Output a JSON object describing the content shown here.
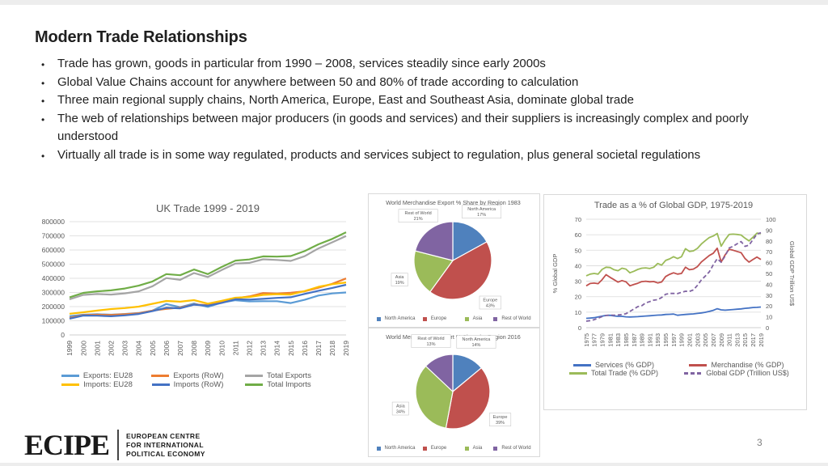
{
  "slide": {
    "title": "Modern Trade Relationships",
    "bullets": [
      "Trade has grown, goods in particular from 1990 – 2008, services steadily since early 2000s",
      "Global Value Chains account for anywhere between 50 and 80% of trade according to calculation",
      "Three main regional supply chains, North America, Europe, East and Southeast Asia, dominate global trade",
      "The web of relationships between major producers (in goods and services) and their suppliers is increasingly complex and poorly understood",
      "Virtually all trade is in some way regulated, products and services subject to regulation, plus general societal regulations"
    ],
    "page_number": "3",
    "logo": {
      "text": "ECIPE",
      "tagline_lines": [
        "EUROPEAN CENTRE",
        "FOR INTERNATIONAL",
        "POLITICAL ECONOMY"
      ]
    },
    "colors": {
      "axis_text": "#595959",
      "gridline": "#d9d9d9",
      "panel_border": "#d9d9d9"
    }
  },
  "chart_data": [
    {
      "type": "line",
      "title": "UK Trade 1999 - 2019",
      "x": [
        "1999",
        "2000",
        "2001",
        "2002",
        "2003",
        "2004",
        "2005",
        "2006",
        "2007",
        "2008",
        "2009",
        "2010",
        "2011",
        "2012",
        "2013",
        "2014",
        "2015",
        "2016",
        "2017",
        "2018",
        "2019"
      ],
      "xlabel": "",
      "ylabel": "",
      "ylim": [
        0,
        800000
      ],
      "ystep": 100000,
      "grid": true,
      "legend_position": "bottom",
      "series": [
        {
          "name": "Exports: EU28",
          "color": "#5B9BD5",
          "values": [
            132000,
            143000,
            146000,
            143000,
            148000,
            155000,
            172000,
            218000,
            196000,
            222000,
            198000,
            228000,
            245000,
            237000,
            238000,
            238000,
            225000,
            248000,
            278000,
            293000,
            300000
          ]
        },
        {
          "name": "Exports (RoW)",
          "color": "#ED7D31",
          "values": [
            120000,
            140000,
            143000,
            142000,
            146000,
            153000,
            172000,
            184000,
            193000,
            215000,
            211000,
            230000,
            259000,
            272000,
            296000,
            292000,
            298000,
            308000,
            333000,
            361000,
            399000
          ]
        },
        {
          "name": "Total Exports",
          "color": "#A5A5A5",
          "values": [
            252000,
            283000,
            289000,
            285000,
            294000,
            308000,
            344000,
            402000,
            389000,
            437000,
            409000,
            458000,
            504000,
            509000,
            534000,
            530000,
            523000,
            556000,
            611000,
            654000,
            699000
          ]
        },
        {
          "name": "Imports: EU28",
          "color": "#FFC000",
          "values": [
            150000,
            160000,
            172000,
            183000,
            190000,
            200000,
            220000,
            240000,
            235000,
            246000,
            221000,
            241000,
            263000,
            268000,
            283000,
            288000,
            285000,
            310000,
            340000,
            358000,
            371000
          ]
        },
        {
          "name": "Imports (RoW)",
          "color": "#4472C4",
          "values": [
            115000,
            137000,
            136000,
            132000,
            138000,
            148000,
            168000,
            192000,
            188000,
            214000,
            207000,
            226000,
            252000,
            250000,
            255000,
            262000,
            266000,
            290000,
            312000,
            332000,
            354000
          ]
        },
        {
          "name": "Total Imports",
          "color": "#70AD47",
          "values": [
            265000,
            297000,
            308000,
            315000,
            328000,
            348000,
            378000,
            430000,
            422000,
            462000,
            430000,
            480000,
            525000,
            533000,
            555000,
            553000,
            557000,
            592000,
            640000,
            678000,
            725000
          ]
        }
      ]
    },
    {
      "type": "pie",
      "title": "World Merchandise Export % Share by Region 1983",
      "categories": [
        "North America",
        "Europe",
        "Asia",
        "Rest of World"
      ],
      "values": [
        17,
        43,
        19,
        21
      ],
      "colors": [
        "#4F81BD",
        "#C0504D",
        "#9BBB59",
        "#8064A2"
      ],
      "legend_position": "bottom"
    },
    {
      "type": "pie",
      "title": "World Merchandise Export % Share by Region 2016",
      "categories": [
        "North America",
        "Europe",
        "Asia",
        "Rest of World"
      ],
      "values": [
        14,
        39,
        34,
        13
      ],
      "colors": [
        "#4F81BD",
        "#C0504D",
        "#9BBB59",
        "#8064A2"
      ],
      "legend_position": "bottom"
    },
    {
      "type": "line",
      "title": "Trade as a % of Global GDP, 1975-2019",
      "x": [
        "1975",
        "1976",
        "1977",
        "1978",
        "1979",
        "1980",
        "1981",
        "1982",
        "1983",
        "1984",
        "1985",
        "1986",
        "1987",
        "1988",
        "1989",
        "1990",
        "1991",
        "1992",
        "1993",
        "1994",
        "1995",
        "1996",
        "1997",
        "1998",
        "1999",
        "2000",
        "2001",
        "2002",
        "2003",
        "2004",
        "2005",
        "2006",
        "2007",
        "2008",
        "2009",
        "2010",
        "2011",
        "2012",
        "2013",
        "2014",
        "2015",
        "2016",
        "2017",
        "2018",
        "2019"
      ],
      "ylabel": "% Global GDP",
      "y2label": "Global GDP Trillion US$",
      "ylim": [
        0,
        70
      ],
      "ystep": 10,
      "y2lim": [
        0,
        100
      ],
      "y2step": 10,
      "grid": true,
      "legend_position": "bottom",
      "series": [
        {
          "name": "Services (% GDP)",
          "color": "#4472C4",
          "values": [
            6.0,
            6.2,
            6.4,
            6.9,
            7.4,
            7.9,
            8.0,
            7.6,
            7.3,
            7.3,
            7.0,
            6.9,
            7.0,
            7.1,
            7.3,
            7.5,
            7.7,
            7.9,
            8.1,
            8.2,
            8.5,
            8.6,
            8.8,
            8.0,
            8.3,
            8.5,
            8.7,
            8.9,
            9.2,
            9.5,
            9.9,
            10.5,
            11.2,
            12.2,
            11.5,
            11.3,
            11.5,
            11.7,
            11.9,
            12.1,
            12.5,
            12.7,
            13.0,
            13.1,
            13.3
          ]
        },
        {
          "name": "Merchandise (% GDP)",
          "color": "#C0504D",
          "values": [
            27.0,
            28.5,
            28.8,
            28.4,
            31.0,
            34.2,
            32.5,
            31.0,
            29.4,
            30.4,
            29.6,
            27.0,
            27.9,
            28.7,
            29.7,
            30.0,
            29.6,
            29.8,
            28.9,
            29.5,
            33.0,
            34.4,
            35.4,
            34.6,
            35.0,
            39.0,
            37.4,
            37.8,
            39.4,
            42.4,
            44.5,
            46.6,
            48.0,
            51.3,
            42.4,
            47.0,
            50.6,
            50.0,
            49.2,
            48.4,
            44.6,
            42.3,
            44.0,
            45.6,
            44.0
          ]
        },
        {
          "name": "Total Trade (% GDP)",
          "color": "#9BBB59",
          "values": [
            33.5,
            34.6,
            35.0,
            34.6,
            37.6,
            39.0,
            38.8,
            37.4,
            36.8,
            38.4,
            37.8,
            35.4,
            36.4,
            37.6,
            38.4,
            38.6,
            38.2,
            39.0,
            41.4,
            40.4,
            43.4,
            44.4,
            45.8,
            44.6,
            45.8,
            51.0,
            49.2,
            49.6,
            51.2,
            54.0,
            56.2,
            58.2,
            59.2,
            60.8,
            52.6,
            56.8,
            60.2,
            60.4,
            60.2,
            59.8,
            57.8,
            56.0,
            58.4,
            61.0,
            60.8
          ]
        },
        {
          "name": "Global GDP (Trillion US$)",
          "color": "#8064A2",
          "dash": true,
          "axis": "right",
          "values": [
            6.0,
            6.5,
            7.4,
            8.7,
            10.2,
            11.3,
            11.6,
            11.5,
            11.7,
            12.2,
            12.8,
            15.0,
            17.2,
            19.4,
            20.2,
            22.8,
            24.0,
            25.4,
            25.8,
            27.8,
            30.8,
            31.6,
            31.6,
            31.4,
            32.6,
            33.6,
            33.4,
            34.8,
            39.0,
            44.0,
            47.6,
            51.5,
            58.0,
            63.6,
            60.3,
            66.1,
            73.4,
            75.1,
            77.3,
            79.4,
            75.0,
            76.1,
            81.2,
            86.3,
            87.6
          ]
        }
      ]
    }
  ]
}
